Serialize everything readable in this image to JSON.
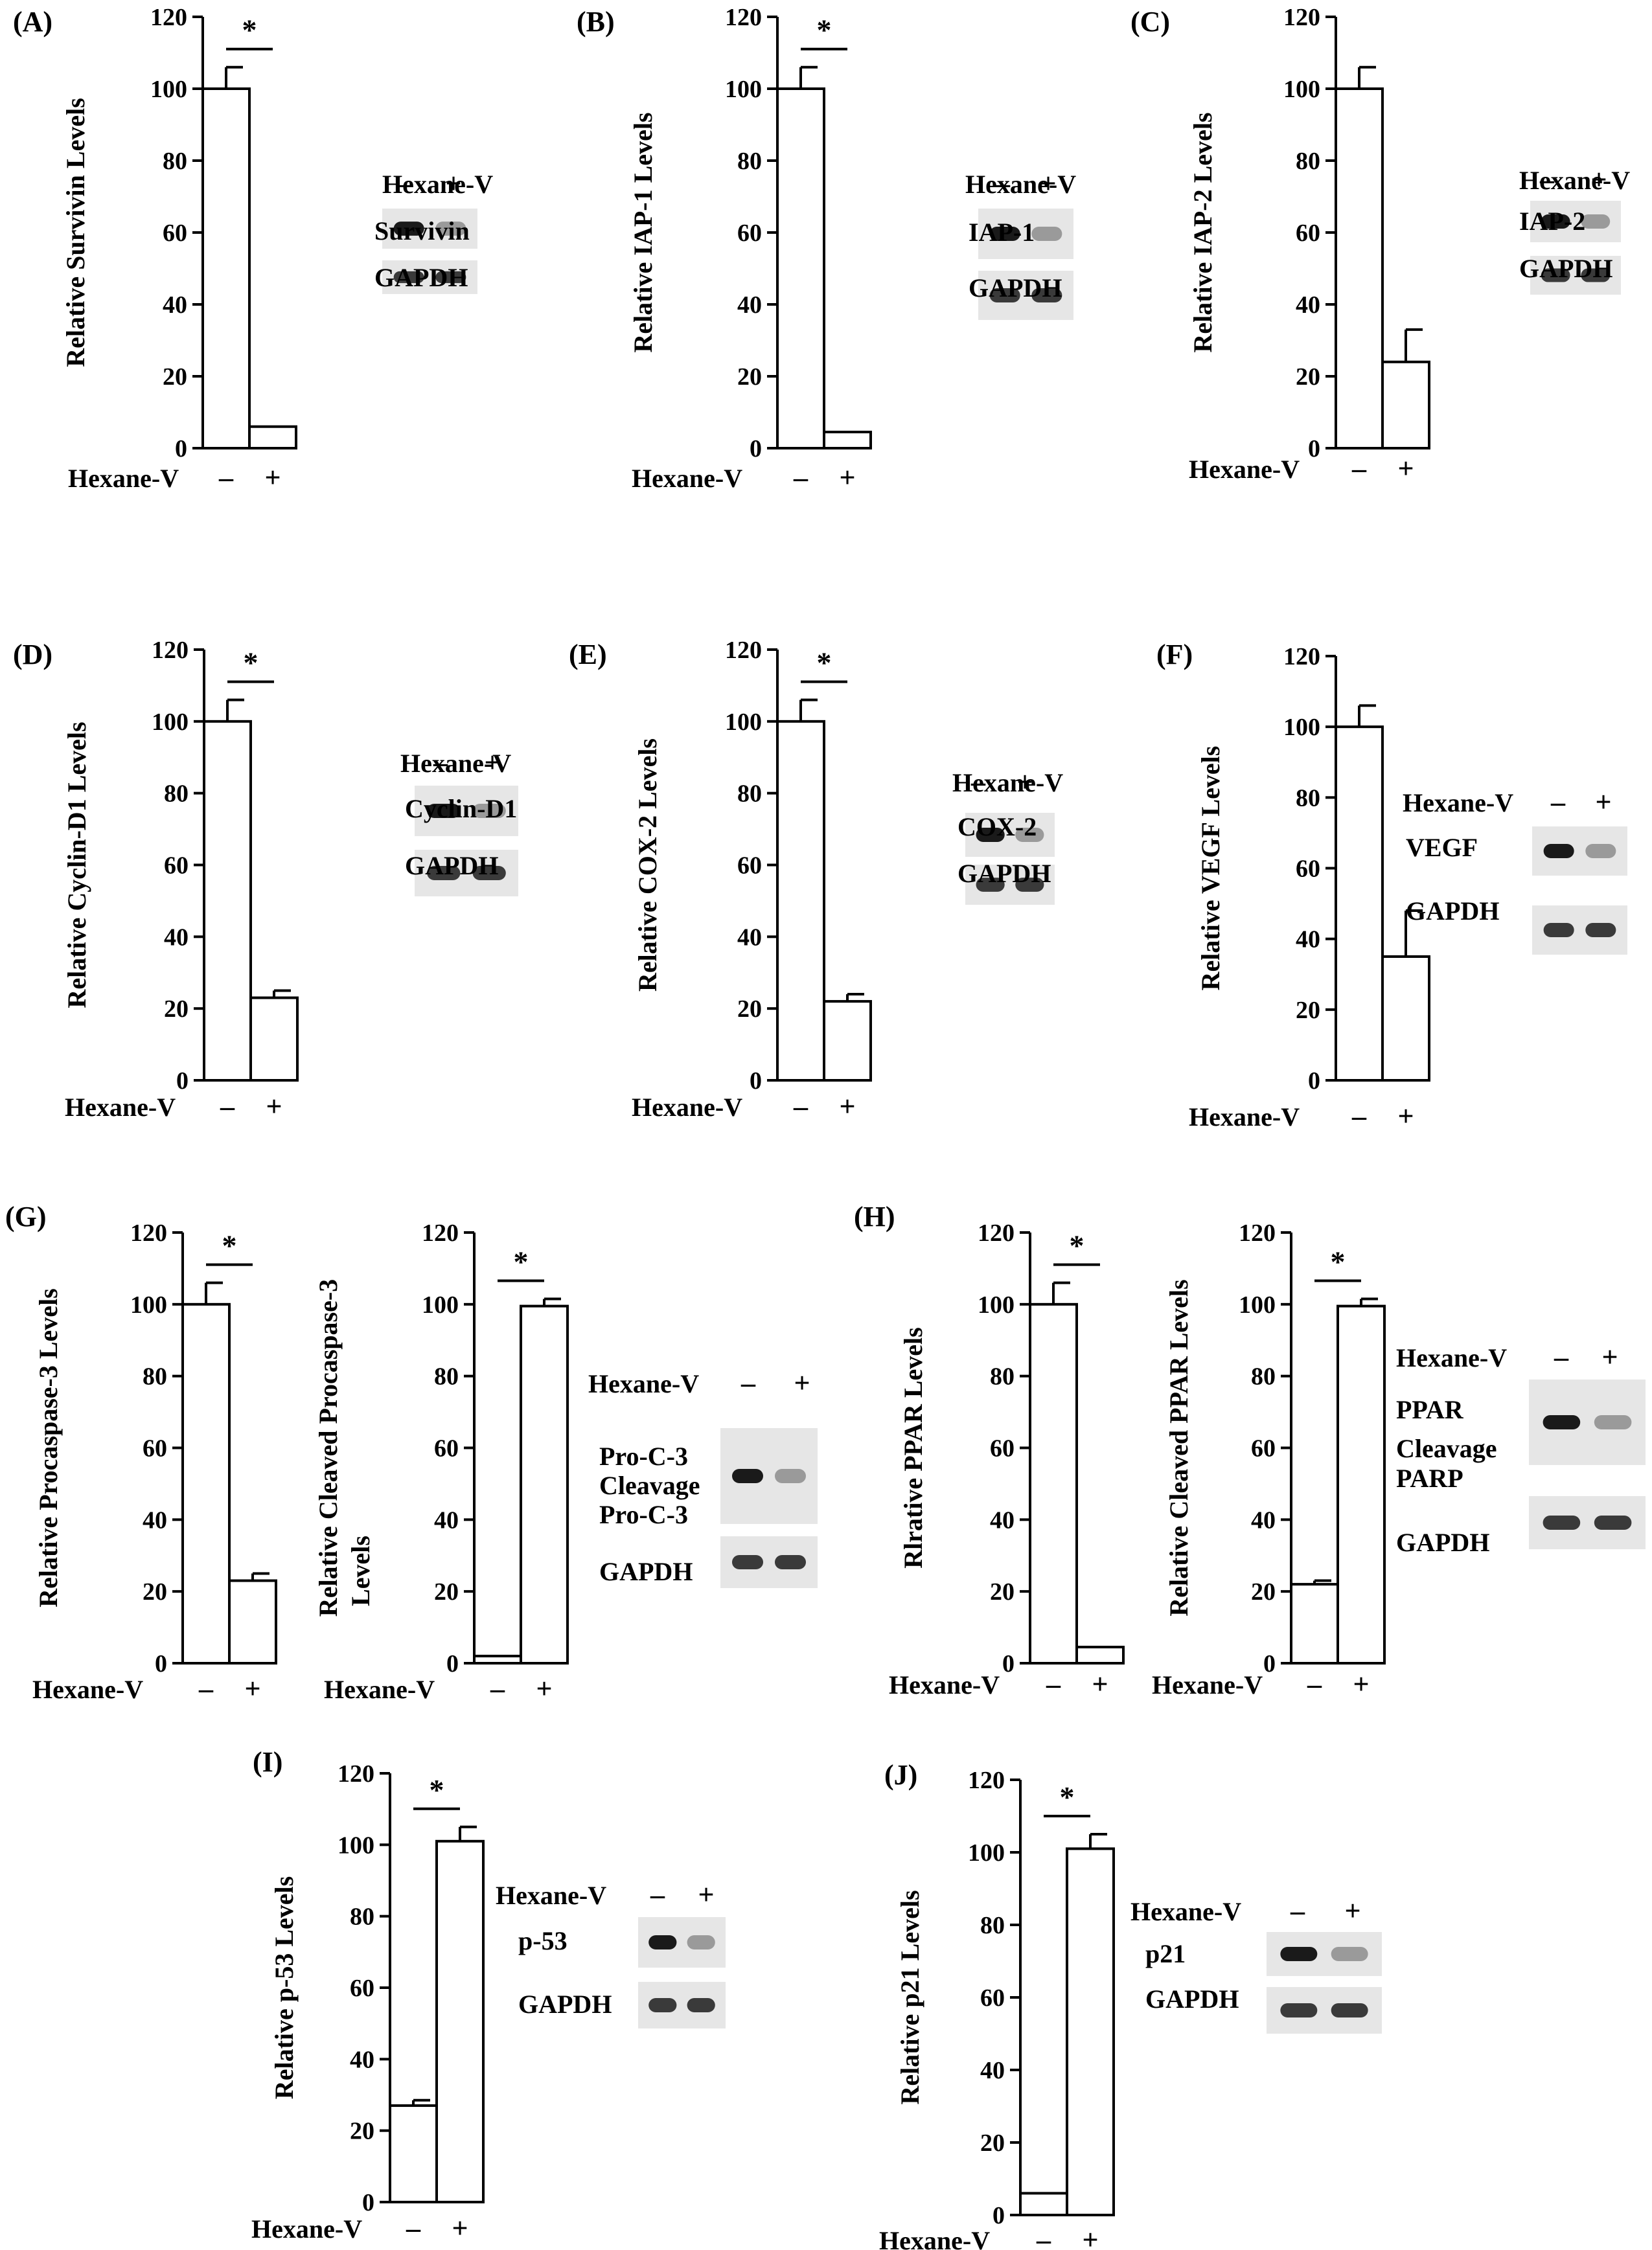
{
  "treatment_label": "Hexane-V",
  "condition_labels": [
    "–",
    "+"
  ],
  "chart_data": [
    {
      "panel": "(A)",
      "type": "bar",
      "ylabel": "Relative  Survivin  Levels",
      "categories": [
        "–",
        "+"
      ],
      "values": [
        100,
        6
      ],
      "errors": [
        6,
        0
      ],
      "ylim": [
        0,
        120
      ],
      "yticks": [
        0,
        20,
        40,
        60,
        80,
        100,
        120
      ],
      "significance": "*",
      "blot": {
        "header": "Hexane-V",
        "lanes": [
          "–",
          "+"
        ],
        "rows": [
          "Survivin",
          "GAPDH"
        ]
      }
    },
    {
      "panel": "(B)",
      "type": "bar",
      "ylabel": "Relative  IAP-1  Levels",
      "categories": [
        "–",
        "+"
      ],
      "values": [
        100,
        4.5
      ],
      "errors": [
        6,
        0
      ],
      "ylim": [
        0,
        120
      ],
      "yticks": [
        0,
        20,
        40,
        60,
        80,
        100,
        120
      ],
      "significance": "*",
      "blot": {
        "header": "Hexane-V",
        "lanes": [
          "–",
          "+"
        ],
        "rows": [
          "IAP-1",
          "GAPDH"
        ]
      }
    },
    {
      "panel": "(C)",
      "type": "bar",
      "ylabel": "Relative  IAP-2  Levels",
      "categories": [
        "–",
        "+"
      ],
      "values": [
        100,
        24
      ],
      "errors": [
        6,
        9
      ],
      "ylim": [
        0,
        120
      ],
      "yticks": [
        0,
        20,
        40,
        60,
        80,
        100,
        120
      ],
      "significance": "",
      "blot": {
        "header": "Hexane-V",
        "lanes": [
          "–",
          "+"
        ],
        "rows": [
          "IAP-2",
          "GAPDH"
        ]
      }
    },
    {
      "panel": "(D)",
      "type": "bar",
      "ylabel": "Relative  Cyclin-D1  Levels",
      "categories": [
        "–",
        "+"
      ],
      "values": [
        100,
        23
      ],
      "errors": [
        6,
        2
      ],
      "ylim": [
        0,
        120
      ],
      "yticks": [
        0,
        20,
        40,
        60,
        80,
        100,
        120
      ],
      "significance": "*",
      "blot": {
        "header": "Hexane-V",
        "lanes": [
          "–",
          "+"
        ],
        "rows": [
          "Cyclin-D1",
          "GAPDH"
        ]
      }
    },
    {
      "panel": "(E)",
      "type": "bar",
      "ylabel": "Relative  COX-2  Levels",
      "categories": [
        "–",
        "+"
      ],
      "values": [
        100,
        22
      ],
      "errors": [
        6,
        2
      ],
      "ylim": [
        0,
        120
      ],
      "yticks": [
        0,
        20,
        40,
        60,
        80,
        100,
        120
      ],
      "significance": "*",
      "blot": {
        "header": "Hexane-V",
        "lanes": [
          "–",
          "+"
        ],
        "rows": [
          "COX-2",
          "GAPDH"
        ]
      }
    },
    {
      "panel": "(F)",
      "type": "bar",
      "ylabel": "Relative  VEGF  Levels",
      "categories": [
        "–",
        "+"
      ],
      "values": [
        100,
        35
      ],
      "errors": [
        6,
        13
      ],
      "ylim": [
        0,
        120
      ],
      "yticks": [
        0,
        20,
        40,
        60,
        80,
        100,
        120
      ],
      "significance": "",
      "blot": {
        "header": "Hexane-V",
        "lanes": [
          "–",
          "+"
        ],
        "rows": [
          "VEGF",
          "GAPDH"
        ]
      }
    },
    {
      "panel": "(G)",
      "type": "bar",
      "ylabel": "Relative  Procaspase-3  Levels",
      "categories": [
        "–",
        "+"
      ],
      "values": [
        100,
        23
      ],
      "errors": [
        6,
        2
      ],
      "ylim": [
        0,
        120
      ],
      "yticks": [
        0,
        20,
        40,
        60,
        80,
        100,
        120
      ],
      "significance": "*"
    },
    {
      "panel": "",
      "type": "bar",
      "ylabel": "Relative  Cleaved Procaspase-3",
      "ylabel2": "Levels",
      "categories": [
        "–",
        "+"
      ],
      "values": [
        2,
        99.5
      ],
      "errors": [
        0,
        2
      ],
      "ylim": [
        0,
        120
      ],
      "yticks": [
        0,
        20,
        40,
        60,
        80,
        100,
        120
      ],
      "significance": "*",
      "blot": {
        "header": "Hexane-V",
        "lanes": [
          "–",
          "+"
        ],
        "rows": [
          "Pro-C-3",
          "Cleavage",
          "Pro-C-3",
          "GAPDH"
        ]
      }
    },
    {
      "panel": "(H)",
      "type": "bar",
      "ylabel": "Rlrative  PPAR  Levels",
      "categories": [
        "–",
        "+"
      ],
      "values": [
        100,
        4.5
      ],
      "errors": [
        6,
        0
      ],
      "ylim": [
        0,
        120
      ],
      "yticks": [
        0,
        20,
        40,
        60,
        80,
        100,
        120
      ],
      "significance": "*"
    },
    {
      "panel": "",
      "type": "bar",
      "ylabel": "Relative  Cleaved PPAR Levels",
      "categories": [
        "–",
        "+"
      ],
      "values": [
        22,
        99.5
      ],
      "errors": [
        1,
        2
      ],
      "ylim": [
        0,
        120
      ],
      "yticks": [
        0,
        20,
        40,
        60,
        80,
        100,
        120
      ],
      "significance": "*",
      "blot": {
        "header": "Hexane-V",
        "lanes": [
          "–",
          "+"
        ],
        "rows": [
          "PPAR",
          "Cleavage",
          "PARP",
          "GAPDH"
        ]
      }
    },
    {
      "panel": "(I)",
      "type": "bar",
      "ylabel": "Relative p-53  Levels",
      "categories": [
        "–",
        "+"
      ],
      "values": [
        27,
        101
      ],
      "errors": [
        1.5,
        4
      ],
      "ylim": [
        0,
        120
      ],
      "yticks": [
        0,
        20,
        40,
        60,
        80,
        100,
        120
      ],
      "significance": "*",
      "blot": {
        "header": "Hexane-V",
        "lanes": [
          "–",
          "+"
        ],
        "rows": [
          "p-53",
          "GAPDH"
        ]
      }
    },
    {
      "panel": "(J)",
      "type": "bar",
      "ylabel": "Relative  p21  Levels",
      "categories": [
        "–",
        "+"
      ],
      "values": [
        6,
        101
      ],
      "errors": [
        0,
        4
      ],
      "ylim": [
        0,
        120
      ],
      "yticks": [
        0,
        20,
        40,
        60,
        80,
        100,
        120
      ],
      "significance": "*",
      "blot": {
        "header": "Hexane-V",
        "lanes": [
          "–",
          "+"
        ],
        "rows": [
          "p21",
          "GAPDH"
        ]
      }
    }
  ]
}
